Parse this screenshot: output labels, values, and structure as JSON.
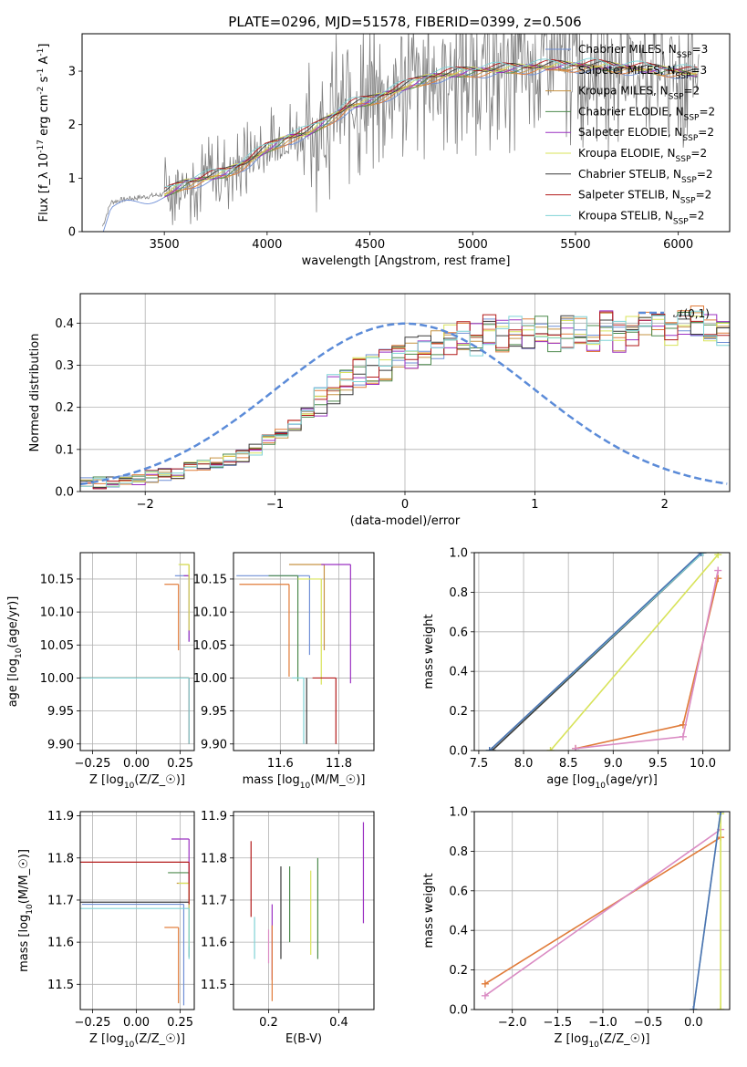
{
  "figure": {
    "title": "PLATE=0296, MJD=51578, FIBERID=0399, z=0.506"
  },
  "colors": {
    "blue": "#4c72b0",
    "orange": "#dd8452",
    "green": "#55a868",
    "red": "#c44e52",
    "purple": "#8172b2",
    "brown": "#937860",
    "pink": "#da8bc3",
    "gray": "#8c8c8c",
    "olive": "#ccb974",
    "cyan": "#64b5cd",
    "data": "#7f7f7f",
    "m_chabrier_miles": "#6f8fd6",
    "m_salpeter_miles": "#e07b39",
    "m_kroupa_miles": "#c69343",
    "m_chabrier_elodie": "#4d8a4d",
    "m_salpeter_elodie": "#9b30c2",
    "m_kroupa_elodie": "#d8e35a",
    "m_chabrier_stelib": "#3a3a3a",
    "m_salpeter_stelib": "#b31b1b",
    "m_kroupa_stelib": "#7fd3d6",
    "gauss": "#5b8bd8"
  },
  "chart_data": [
    {
      "id": "spectrum",
      "type": "line",
      "xlabel": "wavelength [Angstrom, rest frame]",
      "ylabel": "Flux [$f_\\lambda 10^{-17}$ erg cm$^{-2}$ s$^{-1}$ A$^{-1}$]",
      "xlim": [
        3100,
        6250
      ],
      "ylim": [
        0,
        3.7
      ],
      "xticks": [
        3500,
        4000,
        4500,
        5000,
        5500,
        6000
      ],
      "yticks": [
        0,
        1,
        2,
        3
      ],
      "grid": false,
      "legend_position": "top-right",
      "legend": [
        {
          "label": "Chabrier MILES, N$_{SSP}$=3",
          "color_key": "m_chabrier_miles"
        },
        {
          "label": "Salpeter MILES, N$_{SSP}$=3",
          "color_key": "m_salpeter_miles"
        },
        {
          "label": "Kroupa MILES, N$_{SSP}$=2",
          "color_key": "m_kroupa_miles"
        },
        {
          "label": "Chabrier ELODIE, N$_{SSP}$=2",
          "color_key": "m_chabrier_elodie"
        },
        {
          "label": "Salpeter ELODIE, N$_{SSP}$=2",
          "color_key": "m_salpeter_elodie"
        },
        {
          "label": "Kroupa ELODIE, N$_{SSP}$=2",
          "color_key": "m_kroupa_elodie"
        },
        {
          "label": "Chabrier STELIB, N$_{SSP}$=2",
          "color_key": "m_chabrier_stelib"
        },
        {
          "label": "Salpeter STELIB, N$_{SSP}$=2",
          "color_key": "m_salpeter_stelib"
        },
        {
          "label": "Kroupa STELIB, N$_{SSP}$=2",
          "color_key": "m_kroupa_stelib"
        }
      ],
      "continuum": {
        "x": [
          3200,
          3240,
          3300,
          3400,
          3500,
          3600,
          3700,
          3800,
          3900,
          4000,
          4100,
          4200,
          4300,
          4400,
          4500,
          4600,
          4700,
          4800,
          4900,
          5000,
          5200,
          5400,
          5600,
          5800,
          6000,
          6100
        ],
        "y": [
          0.1,
          0.55,
          0.6,
          0.65,
          0.7,
          0.9,
          1.0,
          1.1,
          1.3,
          1.55,
          1.75,
          1.85,
          2.1,
          2.35,
          2.45,
          2.6,
          2.75,
          2.9,
          2.95,
          3.0,
          3.05,
          3.1,
          3.1,
          3.05,
          3.0,
          2.95
        ]
      }
    },
    {
      "id": "residuals",
      "type": "histogram",
      "xlabel": "(data-model)/error",
      "ylabel": "Normed distribution",
      "xlim": [
        -2.5,
        2.5
      ],
      "ylim": [
        0,
        0.47
      ],
      "xticks": [
        -2,
        -1,
        0,
        1,
        2
      ],
      "yticks": [
        0.0,
        0.1,
        0.2,
        0.3,
        0.4
      ],
      "grid": true,
      "legend_position": "top-right",
      "legend": [
        {
          "label": "$\\mathcal{N}(0,1)$",
          "color_key": "gauss"
        }
      ],
      "bin_width": 0.1,
      "bins_start": -2.5,
      "base_profile": [
        0.02,
        0.02,
        0.025,
        0.03,
        0.03,
        0.035,
        0.04,
        0.045,
        0.055,
        0.06,
        0.07,
        0.075,
        0.085,
        0.1,
        0.12,
        0.14,
        0.16,
        0.19,
        0.21,
        0.24,
        0.26,
        0.28,
        0.29,
        0.3,
        0.32,
        0.33,
        0.34,
        0.35,
        0.36,
        0.37,
        0.36,
        0.38,
        0.37,
        0.38,
        0.37,
        0.38,
        0.36,
        0.38,
        0.38,
        0.37,
        0.39,
        0.37,
        0.38,
        0.39,
        0.4,
        0.38,
        0.4,
        0.41,
        0.39,
        0.38,
        0.34,
        0.32,
        0.31,
        0.3,
        0.29,
        0.28,
        0.27,
        0.26,
        0.25,
        0.24,
        0.22,
        0.21,
        0.2,
        0.19,
        0.18,
        0.17,
        0.16,
        0.15,
        0.14,
        0.13,
        0.12,
        0.11,
        0.1,
        0.1,
        0.09,
        0.09,
        0.08,
        0.08,
        0.07,
        0.07,
        0.07,
        0.06,
        0.06,
        0.06,
        0.05,
        0.05,
        0.05,
        0.05,
        0.05,
        0.05
      ],
      "series_keys": [
        "m_chabrier_miles",
        "m_salpeter_miles",
        "m_kroupa_miles",
        "m_chabrier_elodie",
        "m_salpeter_elodie",
        "m_kroupa_elodie",
        "m_chabrier_stelib",
        "m_salpeter_stelib",
        "m_kroupa_stelib"
      ]
    },
    {
      "id": "age_vs_Z",
      "type": "errorbar",
      "xlabel": "Z [log$_{10}$($Z/Z_\\odot$)]",
      "ylabel": "age  [log$_{10}$($age/yr$)]",
      "xlim": [
        -0.32,
        0.33
      ],
      "ylim": [
        9.89,
        10.19
      ],
      "xticks": [
        -0.25,
        0.0,
        0.25
      ],
      "yticks": [
        9.9,
        9.95,
        10.0,
        10.05,
        10.1,
        10.15
      ],
      "grid": true,
      "points": [
        {
          "key": "m_chabrier_miles",
          "x": 0.3,
          "y": 10.155,
          "xerr": [
            0.08,
            0.0
          ],
          "yerr": [
            0.1,
            0.0
          ]
        },
        {
          "key": "m_salpeter_miles",
          "x": 0.24,
          "y": 10.142,
          "xerr": [
            0.08,
            0.0
          ],
          "yerr": [
            0.1,
            0.0
          ]
        },
        {
          "key": "m_kroupa_miles",
          "x": 0.3,
          "y": 10.172,
          "xerr": [
            0.05,
            0.0
          ],
          "yerr": [
            0.1,
            0.0
          ]
        },
        {
          "key": "m_chabrier_elodie",
          "x": 0.3,
          "y": 10.0,
          "xerr": [
            0.62,
            0.0
          ],
          "yerr": [
            0.0,
            0.0
          ]
        },
        {
          "key": "m_salpeter_elodie",
          "x": 0.3,
          "y": 10.155,
          "xerr": [
            0.03,
            0.0
          ],
          "yerr": [
            0.1,
            0.0
          ]
        },
        {
          "key": "m_kroupa_elodie",
          "x": 0.3,
          "y": 10.172,
          "xerr": [
            0.06,
            0.0
          ],
          "yerr": [
            0.1,
            0.0
          ]
        },
        {
          "key": "m_chabrier_stelib",
          "x": 0.3,
          "y": 10.0,
          "xerr": [
            0.62,
            0.0
          ],
          "yerr": [
            0.0,
            0.0
          ]
        },
        {
          "key": "m_salpeter_stelib",
          "x": 0.3,
          "y": 10.0,
          "xerr": [
            0.62,
            0.0
          ],
          "yerr": [
            0.1,
            0.0
          ]
        },
        {
          "key": "m_kroupa_stelib",
          "x": 0.3,
          "y": 10.0,
          "xerr": [
            0.62,
            0.0
          ],
          "yerr": [
            0.1,
            0.0
          ]
        }
      ]
    },
    {
      "id": "age_vs_mass",
      "type": "errorbar",
      "xlabel": "mass [log$_{10}$($M/M_\\odot$)]",
      "ylabel": "",
      "xlim": [
        11.44,
        11.92
      ],
      "ylim": [
        9.89,
        10.19
      ],
      "xticks": [
        11.6,
        11.8
      ],
      "yticks": [
        9.9,
        9.95,
        10.0,
        10.05,
        10.1,
        10.15
      ],
      "grid": true,
      "points": [
        {
          "key": "m_chabrier_miles",
          "x": 11.7,
          "y": 10.155,
          "xerr": [
            0.25,
            0.0
          ],
          "yerr": [
            0.12,
            0.0
          ]
        },
        {
          "key": "m_salpeter_miles",
          "x": 11.63,
          "y": 10.142,
          "xerr": [
            0.17,
            0.0
          ],
          "yerr": [
            0.14,
            0.0
          ]
        },
        {
          "key": "m_kroupa_miles",
          "x": 11.75,
          "y": 10.172,
          "xerr": [
            0.12,
            0.0
          ],
          "yerr": [
            0.13,
            0.0
          ]
        },
        {
          "key": "m_chabrier_elodie",
          "x": 11.66,
          "y": 10.155,
          "xerr": [
            0.1,
            0.0
          ],
          "yerr": [
            0.16,
            0.0
          ]
        },
        {
          "key": "m_salpeter_elodie",
          "x": 11.84,
          "y": 10.172,
          "xerr": [
            0.1,
            0.0
          ],
          "yerr": [
            0.18,
            0.0
          ]
        },
        {
          "key": "m_kroupa_elodie",
          "x": 11.74,
          "y": 10.15,
          "xerr": [
            0.08,
            0.0
          ],
          "yerr": [
            0.16,
            0.0
          ]
        },
        {
          "key": "m_chabrier_stelib",
          "x": 11.69,
          "y": 10.0,
          "xerr": [
            0.0,
            0.0
          ],
          "yerr": [
            0.1,
            0.0
          ]
        },
        {
          "key": "m_salpeter_stelib",
          "x": 11.79,
          "y": 10.0,
          "xerr": [
            0.08,
            0.0
          ],
          "yerr": [
            0.1,
            0.0
          ]
        },
        {
          "key": "m_kroupa_stelib",
          "x": 11.68,
          "y": 10.0,
          "xerr": [
            0.04,
            0.0
          ],
          "yerr": [
            0.1,
            0.0
          ]
        }
      ]
    },
    {
      "id": "massweight_vs_age",
      "type": "line",
      "xlabel": "age  [log$_{10}$($age/yr$)]",
      "ylabel": "mass weight",
      "xlim": [
        7.45,
        10.3
      ],
      "ylim": [
        0.0,
        1.0
      ],
      "xticks": [
        7.5,
        8.0,
        8.5,
        9.0,
        9.5,
        10.0
      ],
      "yticks": [
        0.0,
        0.2,
        0.4,
        0.6,
        0.8,
        1.0
      ],
      "grid": true,
      "series": [
        {
          "key": "m_salpeter_miles",
          "x": [
            8.58,
            9.78,
            10.17
          ],
          "y": [
            0.01,
            0.13,
            0.87
          ]
        },
        {
          "key": "pink",
          "x": [
            8.58,
            9.78,
            10.17
          ],
          "y": [
            0.01,
            0.07,
            0.91
          ]
        },
        {
          "key": "m_kroupa_elodie",
          "x": [
            8.3,
            10.17
          ],
          "y": [
            0.0,
            0.99
          ]
        },
        {
          "key": "m_chabrier_stelib",
          "x": [
            7.65,
            10.0
          ],
          "y": [
            0.0,
            1.0
          ]
        },
        {
          "key": "m_kroupa_stelib",
          "x": [
            7.62,
            10.0
          ],
          "y": [
            0.0,
            1.0
          ]
        },
        {
          "key": "blue",
          "x": [
            7.62,
            9.98
          ],
          "y": [
            0.0,
            1.0
          ]
        }
      ]
    },
    {
      "id": "mass_vs_Z",
      "type": "errorbar",
      "xlabel": "Z [log$_{10}$($Z/Z_\\odot$)]",
      "ylabel": "mass [log$_{10}$($M/M_\\odot$)]",
      "xlim": [
        -0.32,
        0.33
      ],
      "ylim": [
        11.44,
        11.91
      ],
      "xticks": [
        -0.25,
        0.0,
        0.25
      ],
      "yticks": [
        11.5,
        11.6,
        11.7,
        11.8,
        11.9
      ],
      "grid": true,
      "points": [
        {
          "key": "m_chabrier_miles",
          "x": 0.27,
          "y": 11.69,
          "xerr": [
            0.58,
            0.0
          ],
          "yerr": [
            0.24,
            0.0
          ]
        },
        {
          "key": "m_salpeter_miles",
          "x": 0.24,
          "y": 11.635,
          "xerr": [
            0.08,
            0.0
          ],
          "yerr": [
            0.18,
            0.0
          ]
        },
        {
          "key": "m_kroupa_miles",
          "x": 0.3,
          "y": 11.74,
          "xerr": [
            0.07,
            0.0
          ],
          "yerr": [
            0.15,
            0.0
          ]
        },
        {
          "key": "m_chabrier_elodie",
          "x": 0.3,
          "y": 11.765,
          "xerr": [
            0.12,
            0.0
          ],
          "yerr": [
            0.2,
            0.0
          ]
        },
        {
          "key": "m_salpeter_elodie",
          "x": 0.3,
          "y": 11.845,
          "xerr": [
            0.1,
            0.0
          ],
          "yerr": [
            0.2,
            0.0
          ]
        },
        {
          "key": "m_kroupa_elodie",
          "x": 0.3,
          "y": 11.74,
          "xerr": [
            0.06,
            0.0
          ],
          "yerr": [
            0.15,
            0.0
          ]
        },
        {
          "key": "m_chabrier_stelib",
          "x": 0.3,
          "y": 11.695,
          "xerr": [
            0.62,
            0.0
          ],
          "yerr": [
            0.0,
            0.0
          ]
        },
        {
          "key": "m_salpeter_stelib",
          "x": 0.3,
          "y": 11.79,
          "xerr": [
            0.62,
            0.0
          ],
          "yerr": [
            0.1,
            0.0
          ]
        },
        {
          "key": "m_kroupa_stelib",
          "x": 0.3,
          "y": 11.68,
          "xerr": [
            0.62,
            0.0
          ],
          "yerr": [
            0.12,
            0.0
          ]
        }
      ]
    },
    {
      "id": "mass_vs_ebv",
      "type": "errorbar",
      "xlabel": "E(B-V)",
      "ylabel": "",
      "xlim": [
        0.1,
        0.5
      ],
      "ylim": [
        11.44,
        11.91
      ],
      "xticks": [
        0.2,
        0.4
      ],
      "yticks": [
        11.5,
        11.6,
        11.7,
        11.8,
        11.9
      ],
      "grid": true,
      "points": [
        {
          "key": "m_salpeter_stelib",
          "x": 0.15,
          "y": 11.75,
          "yerr": [
            0.09,
            0.09
          ]
        },
        {
          "key": "m_kroupa_stelib",
          "x": 0.16,
          "y": 11.61,
          "yerr": [
            0.05,
            0.05
          ]
        },
        {
          "key": "pink",
          "x": 0.2,
          "y": 11.59,
          "yerr": [
            0.04,
            0.04
          ]
        },
        {
          "key": "m_salpeter_elodie",
          "x": 0.21,
          "y": 11.6,
          "yerr": [
            0.09,
            0.09
          ]
        },
        {
          "key": "m_salpeter_miles",
          "x": 0.21,
          "y": 11.55,
          "yerr": [
            0.09,
            0.09
          ]
        },
        {
          "key": "m_chabrier_stelib",
          "x": 0.235,
          "y": 11.67,
          "yerr": [
            0.11,
            0.11
          ]
        },
        {
          "key": "m_chabrier_elodie",
          "x": 0.26,
          "y": 11.69,
          "yerr": [
            0.09,
            0.09
          ]
        },
        {
          "key": "m_kroupa_elodie",
          "x": 0.32,
          "y": 11.67,
          "yerr": [
            0.1,
            0.1
          ]
        },
        {
          "key": "m_chabrier_elodie",
          "x": 0.34,
          "y": 11.68,
          "yerr": [
            0.12,
            0.12
          ]
        },
        {
          "key": "m_salpeter_elodie",
          "x": 0.47,
          "y": 11.765,
          "yerr": [
            0.12,
            0.12
          ]
        }
      ]
    },
    {
      "id": "massweight_vs_Z",
      "type": "line",
      "xlabel": "Z [log$_{10}$($Z/Z_\\odot$)]",
      "ylabel": "mass weight",
      "xlim": [
        -2.42,
        0.4
      ],
      "ylim": [
        0.0,
        1.0
      ],
      "xticks": [
        -2.0,
        -1.5,
        -1.0,
        -0.5,
        0.0
      ],
      "yticks": [
        0.0,
        0.2,
        0.4,
        0.6,
        0.8,
        1.0
      ],
      "grid": true,
      "series": [
        {
          "key": "m_salpeter_miles",
          "x": [
            -2.3,
            0.3
          ],
          "y": [
            0.13,
            0.87
          ]
        },
        {
          "key": "pink",
          "x": [
            -2.3,
            0.3
          ],
          "y": [
            0.07,
            0.91
          ]
        },
        {
          "key": "m_kroupa_elodie",
          "x": [
            0.3,
            0.3
          ],
          "y": [
            0.0,
            0.99
          ]
        },
        {
          "key": "m_kroupa_stelib",
          "x": [
            0.0,
            0.3
          ],
          "y": [
            0.0,
            1.0
          ]
        },
        {
          "key": "blue",
          "x": [
            0.0,
            0.3
          ],
          "y": [
            0.0,
            1.0
          ]
        }
      ]
    }
  ],
  "text": {
    "spectrum_xlabel": "wavelength [Angstrom, rest frame]",
    "residuals_xlabel": "(data-model)/error",
    "residuals_ylabel": "Normed distribution",
    "mw_ylabel": "mass weight",
    "ebv_xlabel": "E(B-V)"
  }
}
